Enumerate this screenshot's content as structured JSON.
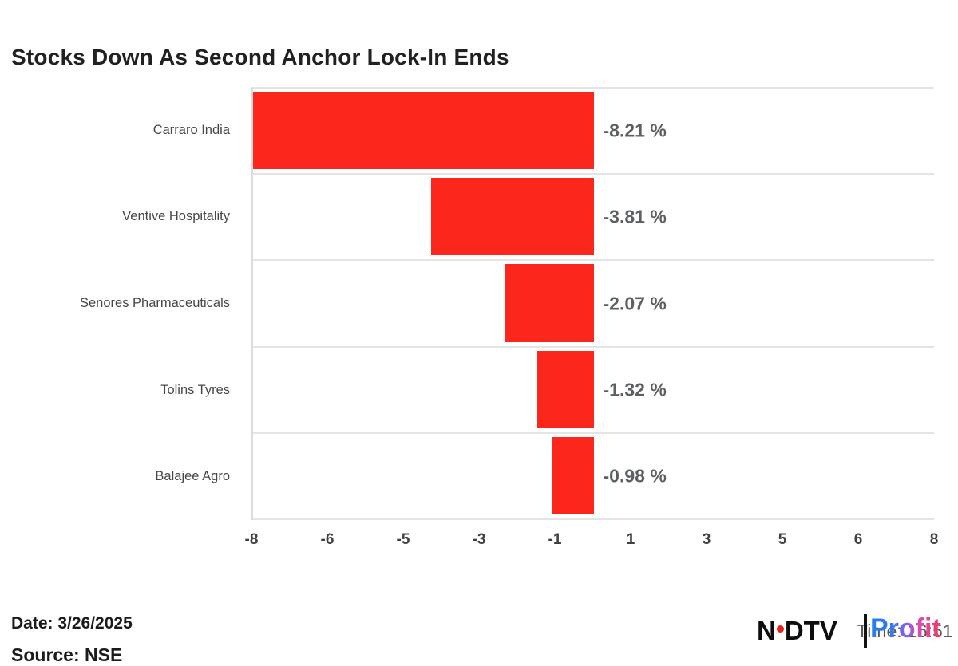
{
  "title": "Stocks Down As Second Anchor Lock-In Ends",
  "chart_data": {
    "type": "bar",
    "orientation": "horizontal",
    "title": "Stocks Down As Second Anchor Lock-In Ends",
    "categories": [
      "Carraro India",
      "Ventive Hospitality",
      "Senores Pharmaceuticals",
      "Tolins Tyres",
      "Balajee Agro"
    ],
    "values": [
      -8.21,
      -3.81,
      -2.07,
      -1.32,
      -0.98
    ],
    "value_labels": [
      "-8.21 %",
      "-3.81 %",
      "-2.07 %",
      "-1.32 %",
      "-0.98 %"
    ],
    "xlim": [
      -8,
      8
    ],
    "x_ticks": [
      "-8",
      "-6",
      "-5",
      "-3",
      "-1",
      "1",
      "3",
      "5",
      "6",
      "8"
    ],
    "bar_color": "#fb271d",
    "grid": false,
    "legend": false,
    "zero_position_pct": 50
  },
  "footer": {
    "date_label": "Date: 3/26/2025",
    "source_label": "Source: NSE"
  },
  "logo": {
    "ndtv_n": "N",
    "ndtv_dtv": "DTV",
    "separator": "|",
    "profit": "Profit",
    "timestamp": "Time: 16:51"
  },
  "colors": {
    "bar_red": "#fb271d",
    "separator_gray": "#e4e4e4",
    "value_label_gray": "#5c6063",
    "tick_gray": "#3f4245",
    "title_dark": "#212121",
    "logo_dot_red": "#e8211d",
    "profit_gradient_start": "#2a7df0",
    "profit_gradient_end": "#ee3767"
  }
}
